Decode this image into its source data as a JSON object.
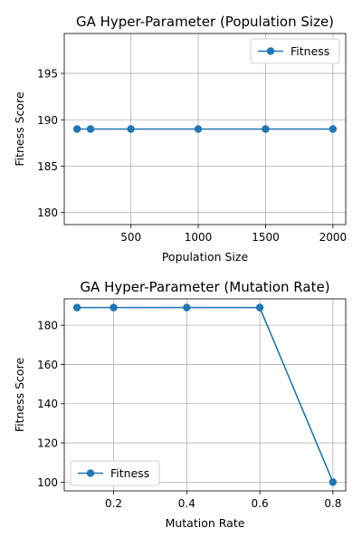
{
  "colors": {
    "series": "#1f77b4"
  },
  "chart_data": [
    {
      "type": "line",
      "title": "GA Hyper-Parameter (Population Size)",
      "xlabel": "Population Size",
      "ylabel": "Fitness Score",
      "x": [
        100,
        200,
        500,
        1000,
        1500,
        2000
      ],
      "series": [
        {
          "name": "Fitness",
          "values": [
            189,
            189,
            189,
            189,
            189,
            189
          ]
        }
      ],
      "xlim": [
        5,
        2095
      ],
      "ylim": [
        178.7,
        199.3
      ],
      "xticks": [
        500,
        1000,
        1500,
        2000
      ],
      "yticks": [
        180,
        185,
        190,
        195
      ],
      "grid": true,
      "legend": "upper right"
    },
    {
      "type": "line",
      "title": "GA Hyper-Parameter (Mutation Rate)",
      "xlabel": "Mutation Rate",
      "ylabel": "Fitness Score",
      "x": [
        0.1,
        0.2,
        0.4,
        0.6,
        0.8
      ],
      "series": [
        {
          "name": "Fitness",
          "values": [
            189,
            189,
            189,
            189,
            100
          ]
        }
      ],
      "xlim": [
        0.065,
        0.835
      ],
      "ylim": [
        95.55,
        193.45
      ],
      "xticks": [
        0.2,
        0.4,
        0.6,
        0.8
      ],
      "yticks": [
        100,
        120,
        140,
        160,
        180
      ],
      "grid": true,
      "legend": "lower left"
    }
  ]
}
